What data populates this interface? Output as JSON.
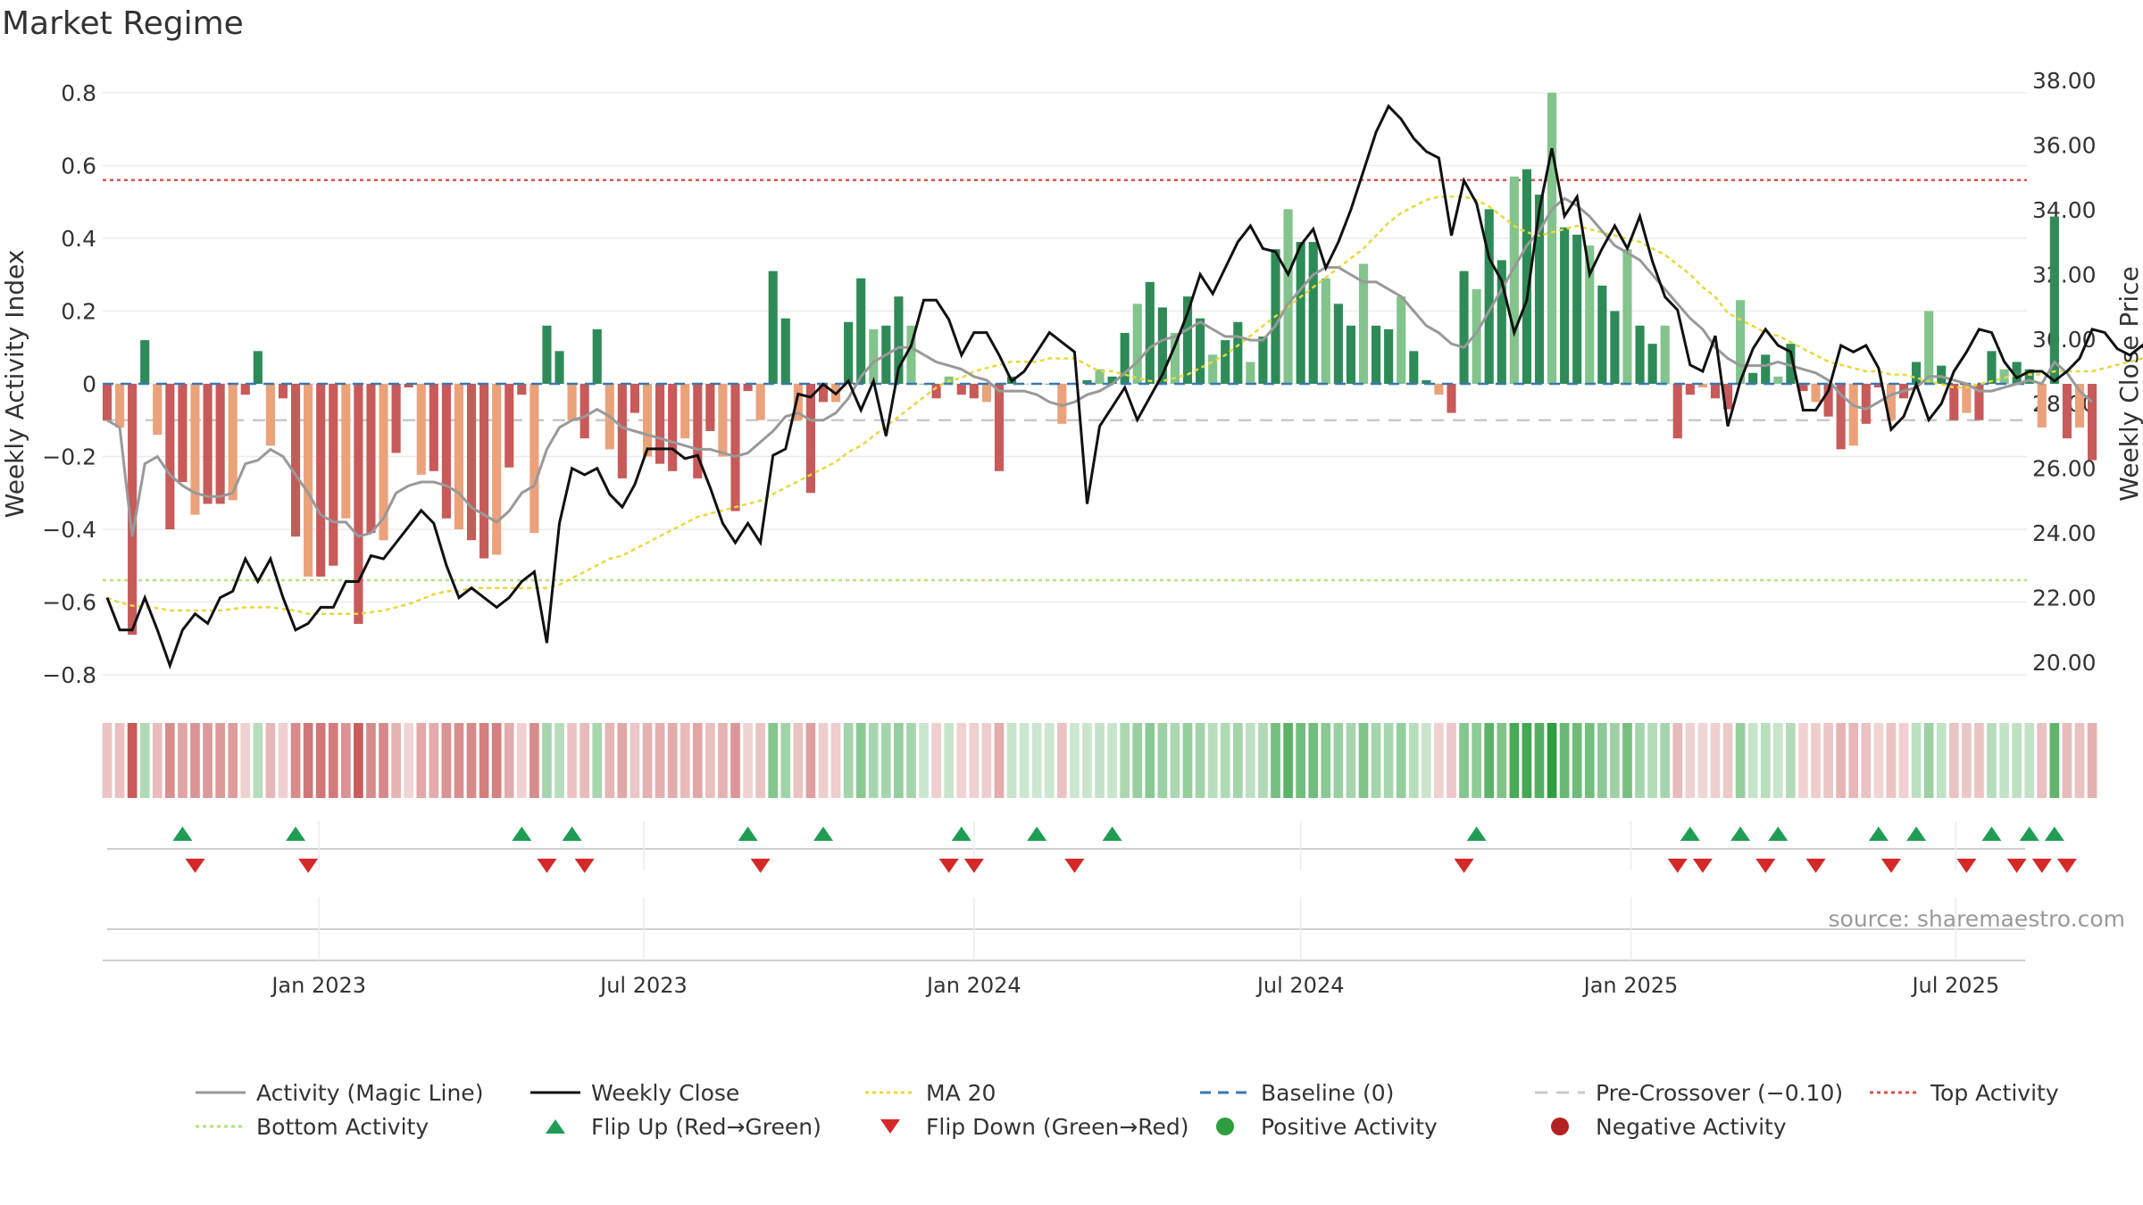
{
  "chart_data": {
    "type": "bar",
    "title": "Market Regime",
    "source": "source: sharemaestro.com",
    "left_axis": {
      "label": "Weekly Activity Index",
      "ticks": [
        "0.8",
        "0.6",
        "0.4",
        "0.2",
        "0",
        "−0.2",
        "−0.4",
        "−0.6",
        "−0.8"
      ],
      "ylim": [
        -0.8,
        0.8
      ]
    },
    "right_axis": {
      "label": "Weekly Close Price",
      "ticks": [
        "38.00",
        "36.00",
        "34.00",
        "32.00",
        "30.00",
        "28.00",
        "26.00",
        "24.00",
        "22.00",
        "20.00"
      ],
      "ylim": [
        20,
        38
      ]
    },
    "x_ticks": [
      "Jan 2023",
      "Jul 2023",
      "Jan 2024",
      "Jul 2024",
      "Jan 2025",
      "Jul 2025"
    ],
    "x_tick_dates": [
      "2023-01-01",
      "2023-07-01",
      "2024-01-01",
      "2024-07-01",
      "2025-01-01",
      "2025-07-01"
    ],
    "start_date": "2022-09-05",
    "activity": [
      -0.1,
      -0.12,
      -0.69,
      0.12,
      -0.14,
      -0.4,
      -0.27,
      -0.36,
      -0.33,
      -0.33,
      -0.32,
      -0.03,
      0.09,
      -0.17,
      -0.04,
      -0.42,
      -0.53,
      -0.53,
      -0.5,
      -0.37,
      -0.66,
      -0.41,
      -0.43,
      -0.19,
      -0.01,
      -0.25,
      -0.24,
      -0.37,
      -0.4,
      -0.43,
      -0.48,
      -0.47,
      -0.23,
      -0.03,
      -0.41,
      0.16,
      0.09,
      -0.1,
      -0.15,
      0.15,
      -0.18,
      -0.26,
      -0.08,
      -0.2,
      -0.22,
      -0.24,
      -0.15,
      -0.26,
      -0.13,
      -0.2,
      -0.35,
      -0.02,
      -0.1,
      0.31,
      0.18,
      -0.1,
      -0.3,
      -0.05,
      -0.05,
      0.17,
      0.29,
      0.15,
      0.16,
      0.24,
      0.16,
      0.0,
      -0.04,
      0.02,
      -0.03,
      -0.04,
      -0.05,
      -0.24,
      0.02,
      0.0,
      0.0,
      0.0,
      -0.11,
      0.0,
      0.01,
      0.04,
      0.02,
      0.14,
      0.22,
      0.28,
      0.21,
      0.14,
      0.24,
      0.18,
      0.08,
      0.12,
      0.17,
      0.06,
      0.13,
      0.37,
      0.48,
      0.39,
      0.39,
      0.29,
      0.22,
      0.16,
      0.33,
      0.16,
      0.15,
      0.24,
      0.09,
      0.01,
      -0.03,
      -0.08,
      0.31,
      0.26,
      0.48,
      0.34,
      0.57,
      0.59,
      0.52,
      0.8,
      0.43,
      0.41,
      0.38,
      0.27,
      0.2,
      0.37,
      0.16,
      0.11,
      0.16,
      -0.15,
      -0.03,
      -0.01,
      -0.04,
      -0.07,
      0.23,
      0.03,
      0.08,
      0.02,
      0.11,
      -0.02,
      -0.05,
      -0.09,
      -0.18,
      -0.17,
      -0.11,
      -0.01,
      -0.1,
      -0.04,
      0.06,
      0.2,
      0.05,
      -0.1,
      -0.08,
      -0.1,
      0.09,
      0.04,
      0.06,
      0.04,
      -0.12,
      0.46,
      -0.15,
      -0.12,
      -0.21
    ],
    "magic_line": [
      -0.1,
      -0.12,
      -0.42,
      -0.22,
      -0.2,
      -0.25,
      -0.28,
      -0.3,
      -0.31,
      -0.31,
      -0.3,
      -0.22,
      -0.21,
      -0.18,
      -0.2,
      -0.25,
      -0.3,
      -0.36,
      -0.38,
      -0.38,
      -0.42,
      -0.41,
      -0.37,
      -0.3,
      -0.28,
      -0.27,
      -0.27,
      -0.28,
      -0.3,
      -0.34,
      -0.36,
      -0.38,
      -0.35,
      -0.3,
      -0.28,
      -0.18,
      -0.12,
      -0.1,
      -0.09,
      -0.07,
      -0.09,
      -0.12,
      -0.13,
      -0.14,
      -0.15,
      -0.16,
      -0.17,
      -0.18,
      -0.18,
      -0.19,
      -0.2,
      -0.19,
      -0.16,
      -0.13,
      -0.09,
      -0.08,
      -0.1,
      -0.1,
      -0.08,
      -0.04,
      0.02,
      0.06,
      0.08,
      0.1,
      0.1,
      0.08,
      0.06,
      0.05,
      0.04,
      0.02,
      0.01,
      -0.02,
      -0.02,
      -0.02,
      -0.03,
      -0.05,
      -0.06,
      -0.05,
      -0.03,
      -0.02,
      0.0,
      0.03,
      0.06,
      0.1,
      0.12,
      0.13,
      0.15,
      0.17,
      0.15,
      0.13,
      0.13,
      0.12,
      0.12,
      0.16,
      0.22,
      0.26,
      0.3,
      0.32,
      0.32,
      0.3,
      0.28,
      0.28,
      0.26,
      0.24,
      0.2,
      0.16,
      0.14,
      0.11,
      0.1,
      0.14,
      0.2,
      0.26,
      0.32,
      0.38,
      0.42,
      0.48,
      0.51,
      0.49,
      0.46,
      0.42,
      0.38,
      0.36,
      0.34,
      0.3,
      0.26,
      0.22,
      0.18,
      0.15,
      0.1,
      0.07,
      0.05,
      0.05,
      0.05,
      0.06,
      0.05,
      0.04,
      0.03,
      0.01,
      -0.03,
      -0.06,
      -0.07,
      -0.05,
      -0.03,
      -0.02,
      -0.01,
      0.02,
      0.02,
      0.01,
      0.0,
      -0.02,
      -0.02,
      -0.01,
      0.0,
      0.01,
      0.0,
      0.06,
      0.03,
      -0.02,
      -0.05
    ],
    "weekly_close": [
      22.0,
      21.0,
      21.0,
      22.0,
      21.0,
      19.9,
      21.0,
      21.5,
      21.2,
      22.0,
      22.2,
      23.2,
      22.5,
      23.2,
      22.0,
      21.0,
      21.2,
      21.7,
      21.7,
      22.5,
      22.5,
      23.3,
      23.2,
      23.7,
      24.2,
      24.7,
      24.3,
      23.0,
      22.0,
      22.3,
      22.0,
      21.7,
      22.0,
      22.5,
      22.8,
      20.6,
      24.3,
      26.0,
      25.8,
      26.0,
      25.2,
      24.8,
      25.5,
      26.6,
      26.6,
      26.6,
      26.3,
      26.4,
      25.4,
      24.3,
      23.7,
      24.3,
      23.7,
      26.4,
      26.6,
      28.3,
      28.2,
      28.6,
      28.3,
      28.7,
      27.8,
      28.7,
      27.0,
      29.1,
      29.8,
      31.2,
      31.2,
      30.6,
      29.5,
      30.2,
      30.2,
      29.5,
      28.7,
      29.0,
      29.6,
      30.2,
      29.9,
      29.6,
      24.9,
      27.3,
      27.9,
      28.5,
      27.5,
      28.2,
      28.9,
      29.8,
      30.8,
      32.0,
      31.4,
      32.2,
      33.0,
      33.5,
      32.8,
      32.7,
      32.0,
      32.9,
      33.4,
      32.2,
      33.0,
      34.0,
      35.2,
      36.4,
      37.2,
      36.8,
      36.2,
      35.8,
      35.6,
      33.2,
      34.9,
      34.2,
      32.5,
      31.8,
      30.2,
      31.2,
      34.0,
      35.9,
      33.8,
      34.4,
      32.0,
      32.8,
      33.5,
      32.8,
      33.8,
      32.4,
      31.3,
      30.9,
      29.2,
      29.0,
      30.1,
      27.3,
      28.7,
      29.7,
      30.3,
      29.8,
      29.6,
      27.8,
      27.8,
      28.4,
      29.8,
      29.6,
      29.8,
      29.1,
      27.2,
      27.6,
      28.6,
      27.5,
      28.0,
      29.0,
      29.6,
      30.3,
      30.2,
      29.3,
      28.8,
      29.0,
      29.0,
      28.7,
      29.0,
      29.4,
      30.3,
      30.2,
      29.7,
      29.5,
      29.8,
      29.2
    ],
    "ma20": [
      22.0,
      21.85,
      21.75,
      21.7,
      21.68,
      21.6,
      21.6,
      21.6,
      21.6,
      21.6,
      21.65,
      21.7,
      21.7,
      21.7,
      21.65,
      21.6,
      21.5,
      21.5,
      21.5,
      21.5,
      21.5,
      21.55,
      21.6,
      21.7,
      21.8,
      21.95,
      22.1,
      22.2,
      22.2,
      22.3,
      22.3,
      22.3,
      22.3,
      22.3,
      22.3,
      22.3,
      22.4,
      22.6,
      22.8,
      23.0,
      23.2,
      23.3,
      23.5,
      23.7,
      23.9,
      24.1,
      24.3,
      24.5,
      24.6,
      24.7,
      24.8,
      24.9,
      25.0,
      25.2,
      25.4,
      25.6,
      25.8,
      26.0,
      26.2,
      26.5,
      26.7,
      27.0,
      27.3,
      27.6,
      27.9,
      28.2,
      28.5,
      28.7,
      28.8,
      29.0,
      29.1,
      29.2,
      29.3,
      29.3,
      29.3,
      29.4,
      29.4,
      29.4,
      29.2,
      29.0,
      29.0,
      28.9,
      28.8,
      28.7,
      28.7,
      28.8,
      28.9,
      29.1,
      29.3,
      29.5,
      29.8,
      30.1,
      30.4,
      30.7,
      31.0,
      31.3,
      31.6,
      31.9,
      32.2,
      32.5,
      32.8,
      33.2,
      33.6,
      33.9,
      34.1,
      34.3,
      34.4,
      34.4,
      34.4,
      34.3,
      34.1,
      33.8,
      33.5,
      33.3,
      33.2,
      33.3,
      33.4,
      33.5,
      33.4,
      33.3,
      33.2,
      33.1,
      33.0,
      32.8,
      32.6,
      32.3,
      32.0,
      31.6,
      31.3,
      30.8,
      30.6,
      30.4,
      30.2,
      30.1,
      29.9,
      29.7,
      29.5,
      29.3,
      29.2,
      29.1,
      29.0,
      29.0,
      28.9,
      28.9,
      28.8,
      28.7,
      28.6,
      28.5,
      28.5,
      28.6,
      28.7,
      28.8,
      28.9,
      28.9,
      28.9,
      29.0,
      29.0,
      29.0,
      29.0,
      29.1,
      29.2,
      29.3,
      29.4,
      29.5,
      29.6,
      29.5,
      29.4,
      29.4
    ],
    "reference_lines": {
      "top_activity": 0.56,
      "bottom_activity": -0.54,
      "pre_crossover": -0.1,
      "baseline": 0
    },
    "flip_up_dates": [
      "2022-10-17",
      "2022-12-19",
      "2023-04-24",
      "2023-05-22",
      "2023-08-28",
      "2023-10-09",
      "2023-12-25",
      "2024-02-05",
      "2024-03-18",
      "2024-10-07",
      "2025-02-03",
      "2025-03-03",
      "2025-03-24",
      "2025-05-19",
      "2025-06-09",
      "2025-07-21",
      "2025-08-11",
      "2025-08-25"
    ],
    "flip_down_dates": [
      "2022-10-24",
      "2022-12-26",
      "2023-05-08",
      "2023-05-29",
      "2023-09-04",
      "2023-12-18",
      "2024-01-01",
      "2024-02-26",
      "2024-09-30",
      "2025-01-27",
      "2025-02-10",
      "2025-03-17",
      "2025-04-14",
      "2025-05-26",
      "2025-07-07",
      "2025-08-04",
      "2025-08-18",
      "2025-09-01"
    ],
    "colors": {
      "pos_strong": "#2e8b57",
      "pos_light": "#82c48c",
      "neg_strong": "#c85a5a",
      "neg_light": "#eba27a",
      "magic": "#999999",
      "close": "#111111",
      "ma20": "#e8d83a",
      "baseline": "#3a78b0",
      "pre": "#c8c8c8",
      "top": "#d9534f",
      "bottom": "#b6e07a",
      "flip_up": "#1f9d55",
      "flip_down": "#d62828",
      "grid": "#ebebeb"
    },
    "legend_rows": [
      [
        {
          "label": "Activity (Magic Line)",
          "kind": "line",
          "color": "#999999",
          "dash": ""
        },
        {
          "label": "Weekly Close",
          "kind": "line",
          "color": "#111111",
          "dash": ""
        },
        {
          "label": "MA 20",
          "kind": "line",
          "color": "#e8d83a",
          "dash": "4 4"
        },
        {
          "label": "Baseline (0)",
          "kind": "line",
          "color": "#3a78b0",
          "dash": "12 8"
        },
        {
          "label": "Pre-Crossover (−0.10)",
          "kind": "line",
          "color": "#c8c8c8",
          "dash": "14 10"
        },
        {
          "label": "Top Activity",
          "kind": "line",
          "color": "#d9534f",
          "dash": "4 4"
        }
      ],
      [
        {
          "label": "Bottom Activity",
          "kind": "line",
          "color": "#b6e07a",
          "dash": "4 4"
        },
        {
          "label": "Flip Up (Red→Green)",
          "kind": "up",
          "color": "#1f9d55",
          "dash": ""
        },
        {
          "label": "Flip Down (Green→Red)",
          "kind": "down",
          "color": "#d62828",
          "dash": ""
        },
        {
          "label": "Positive Activity",
          "kind": "dot",
          "color": "#2e9e3e",
          "dash": ""
        },
        {
          "label": "Negative Activity",
          "kind": "dot",
          "color": "#b22222",
          "dash": ""
        }
      ]
    ]
  }
}
